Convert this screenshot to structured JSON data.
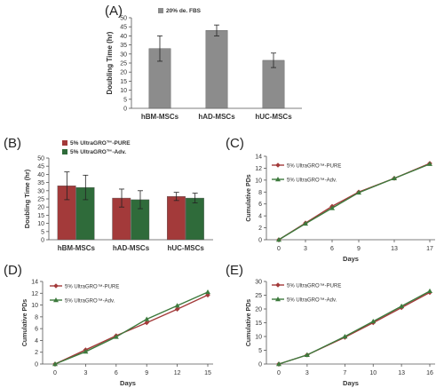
{
  "panels": {
    "A": {
      "label": "(A)",
      "chart_data": {
        "type": "bar",
        "categories": [
          "hBM-MSCs",
          "hAD-MSCs",
          "hUC-MSCs"
        ],
        "series": [
          {
            "name": "20% de. FBS",
            "color": "#8c8c8c",
            "values": [
              33,
              43,
              26.5
            ],
            "errors": [
              7,
              3,
              4
            ]
          }
        ],
        "ylabel": "Doubling Time (hr)",
        "xlabel": "",
        "ylim": [
          0,
          50
        ],
        "yticks": [
          0,
          5,
          10,
          15,
          20,
          25,
          30,
          35,
          40,
          45,
          50
        ],
        "legend": "top-left"
      }
    },
    "B": {
      "label": "(B)",
      "chart_data": {
        "type": "bar",
        "categories": [
          "hBM-MSCs",
          "hAD-MSCs",
          "hUC-MSCs"
        ],
        "series": [
          {
            "name": "5% UltraGRO™-PURE",
            "color": "#a33a3a",
            "values": [
              33,
              25.5,
              26.5
            ],
            "errors": [
              8.5,
              5.5,
              2.5
            ]
          },
          {
            "name": "5% UltraGRO™-Adv.",
            "color": "#2f6b3a",
            "values": [
              32,
              24.5,
              25.5
            ],
            "errors": [
              7.5,
              5.5,
              3
            ]
          }
        ],
        "ylabel": "Doubling Time (hr)",
        "xlabel": "",
        "ylim": [
          0,
          50
        ],
        "yticks": [
          0,
          5,
          10,
          15,
          20,
          25,
          30,
          35,
          40,
          45,
          50
        ],
        "legend": "top"
      }
    },
    "C": {
      "label": "(C)",
      "chart_data": {
        "type": "line",
        "x": [
          0,
          3,
          6,
          9,
          13,
          17
        ],
        "series": [
          {
            "name": "5% UltraGRO™-PURE",
            "color": "#a33a3a",
            "marker": "diamond",
            "values": [
              0,
              2.8,
              5.6,
              8.0,
              10.3,
              12.8
            ]
          },
          {
            "name": "5% UltraGRO™-Adv.",
            "color": "#3d7a3d",
            "marker": "triangle",
            "values": [
              0,
              2.7,
              5.3,
              7.9,
              10.3,
              12.7
            ]
          }
        ],
        "xlabel": "Days",
        "ylabel": "Cumulative PDs",
        "xticks": [
          0,
          3,
          6,
          9,
          13,
          17
        ],
        "ylim": [
          0,
          14
        ],
        "yticks": [
          0,
          2,
          4,
          6,
          8,
          10,
          12,
          14
        ],
        "legend": "top-left"
      }
    },
    "D": {
      "label": "(D)",
      "chart_data": {
        "type": "line",
        "x": [
          0,
          3,
          6,
          9,
          12,
          15
        ],
        "series": [
          {
            "name": "5% UltraGRO™-PURE",
            "color": "#a33a3a",
            "marker": "diamond",
            "values": [
              0,
              2.4,
              4.8,
              7.0,
              9.3,
              11.7
            ]
          },
          {
            "name": "5% UltraGRO™-Adv.",
            "color": "#3d7a3d",
            "marker": "triangle",
            "values": [
              0,
              2.1,
              4.6,
              7.6,
              9.9,
              12.2
            ]
          }
        ],
        "xlabel": "Days",
        "ylabel": "Cumulative PDs",
        "xticks": [
          0,
          3,
          6,
          9,
          12,
          15
        ],
        "ylim": [
          0,
          14
        ],
        "yticks": [
          0,
          2,
          4,
          6,
          8,
          10,
          12,
          14
        ],
        "legend": "top-left"
      }
    },
    "E": {
      "label": "(E)",
      "chart_data": {
        "type": "line",
        "x": [
          0,
          3,
          7,
          10,
          13,
          16
        ],
        "series": [
          {
            "name": "5% UltraGRO™-PURE",
            "color": "#a33a3a",
            "marker": "diamond",
            "values": [
              0,
              3.3,
              9.7,
              15.0,
              20.5,
              26.0
            ]
          },
          {
            "name": "5% UltraGRO™-Adv.",
            "color": "#3d7a3d",
            "marker": "triangle",
            "values": [
              0,
              3.3,
              10.0,
              15.5,
              21.0,
              26.5
            ]
          }
        ],
        "xlabel": "Days",
        "ylabel": "Cumulative PDs",
        "xticks": [
          0,
          3,
          7,
          10,
          13,
          16
        ],
        "ylim": [
          0,
          30
        ],
        "yticks": [
          0,
          5,
          10,
          15,
          20,
          25,
          30
        ],
        "legend": "top-left"
      }
    }
  }
}
